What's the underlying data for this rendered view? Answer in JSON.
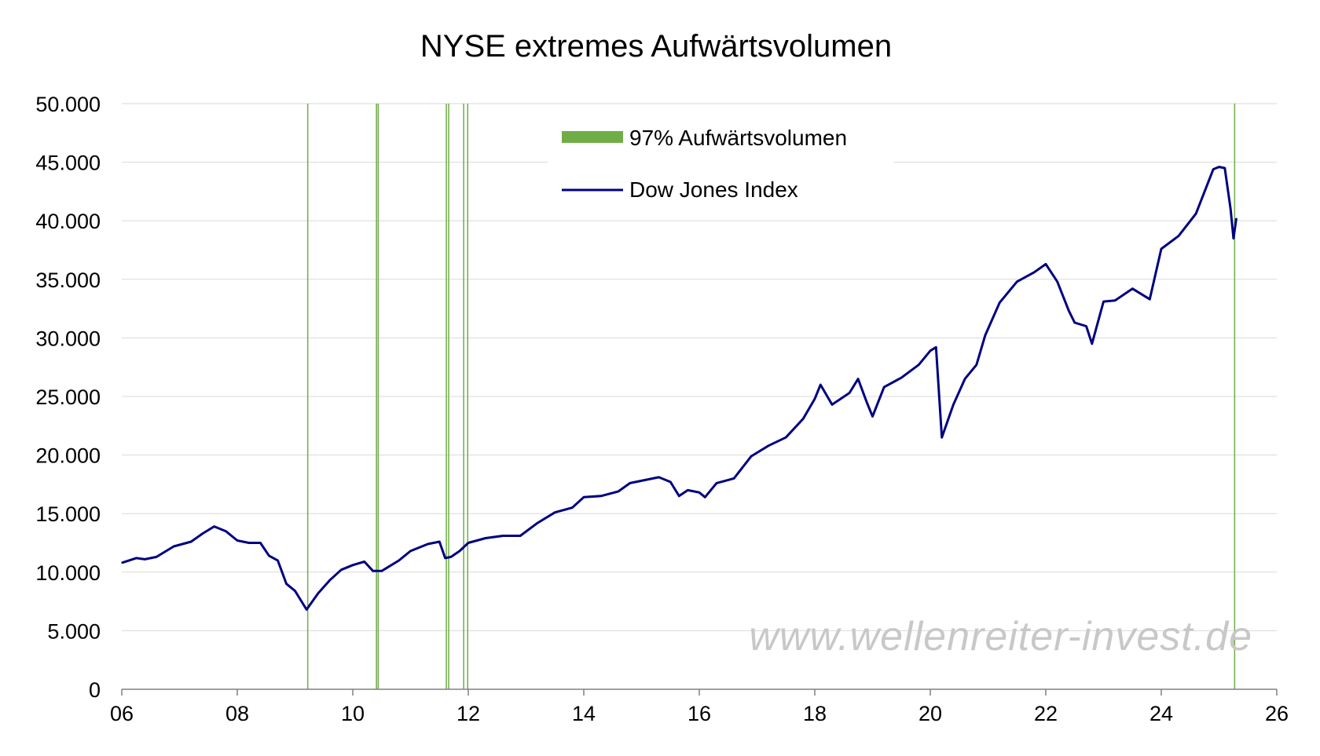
{
  "chart_data": {
    "type": "line",
    "title": "NYSE extremes Aufwärtsvolumen",
    "xlabel": "",
    "ylabel": "",
    "xlim": [
      2006,
      2026
    ],
    "ylim": [
      0,
      50000
    ],
    "x_ticks": [
      2006,
      2008,
      2010,
      2012,
      2014,
      2016,
      2018,
      2020,
      2022,
      2024,
      2026
    ],
    "x_tick_labels": [
      "06",
      "08",
      "10",
      "12",
      "14",
      "16",
      "18",
      "20",
      "22",
      "24",
      "26"
    ],
    "y_ticks": [
      0,
      5000,
      10000,
      15000,
      20000,
      25000,
      30000,
      35000,
      40000,
      45000,
      50000
    ],
    "y_tick_labels": [
      "0",
      "5.000",
      "10.000",
      "15.000",
      "20.000",
      "25.000",
      "30.000",
      "35.000",
      "40.000",
      "45.000",
      "50.000"
    ],
    "grid": "horizontal",
    "legend_placement": "top-center",
    "series": [
      {
        "name": "Dow Jones Index",
        "kind": "line",
        "color": "#000080",
        "x": [
          2006.0,
          2006.25,
          2006.4,
          2006.6,
          2006.9,
          2007.2,
          2007.4,
          2007.6,
          2007.8,
          2008.0,
          2008.2,
          2008.4,
          2008.55,
          2008.7,
          2008.85,
          2009.0,
          2009.2,
          2009.4,
          2009.6,
          2009.8,
          2010.0,
          2010.2,
          2010.35,
          2010.5,
          2010.8,
          2011.0,
          2011.3,
          2011.5,
          2011.6,
          2011.7,
          2011.85,
          2012.0,
          2012.3,
          2012.6,
          2012.9,
          2013.2,
          2013.5,
          2013.8,
          2014.0,
          2014.3,
          2014.6,
          2014.8,
          2015.0,
          2015.3,
          2015.5,
          2015.65,
          2015.8,
          2016.0,
          2016.1,
          2016.3,
          2016.6,
          2016.9,
          2017.2,
          2017.5,
          2017.8,
          2018.0,
          2018.1,
          2018.3,
          2018.6,
          2018.75,
          2018.9,
          2019.0,
          2019.2,
          2019.5,
          2019.8,
          2020.0,
          2020.1,
          2020.2,
          2020.4,
          2020.6,
          2020.8,
          2020.95,
          2021.2,
          2021.5,
          2021.8,
          2022.0,
          2022.2,
          2022.4,
          2022.5,
          2022.7,
          2022.8,
          2023.0,
          2023.2,
          2023.5,
          2023.8,
          2024.0,
          2024.3,
          2024.6,
          2024.9,
          2025.0,
          2025.1,
          2025.2,
          2025.25,
          2025.3
        ],
        "values": [
          10800,
          11200,
          11100,
          11300,
          12200,
          12600,
          13300,
          13900,
          13500,
          12700,
          12500,
          12500,
          11400,
          11000,
          9000,
          8400,
          6800,
          8200,
          9300,
          10200,
          10600,
          10900,
          10100,
          10100,
          11000,
          11800,
          12400,
          12600,
          11200,
          11300,
          11800,
          12500,
          12900,
          13100,
          13100,
          14200,
          15100,
          15500,
          16400,
          16500,
          16900,
          17600,
          17800,
          18100,
          17700,
          16500,
          17000,
          16800,
          16400,
          17600,
          18000,
          19900,
          20800,
          21500,
          23100,
          24800,
          26000,
          24300,
          25300,
          26500,
          24500,
          23300,
          25800,
          26600,
          27700,
          28900,
          29200,
          21500,
          24300,
          26500,
          27700,
          30200,
          33000,
          34800,
          35600,
          36300,
          34800,
          32300,
          31300,
          31000,
          29500,
          33100,
          33200,
          34200,
          33300,
          37600,
          38700,
          40600,
          44400,
          44600,
          44500,
          41000,
          38500,
          40200
        ]
      },
      {
        "name": "97% Aufwärtsvolumen",
        "kind": "event-lines",
        "color": "#70AD47",
        "events": [
          2009.22,
          2010.41,
          2010.44,
          2011.62,
          2011.66,
          2011.92,
          2011.99,
          2025.27
        ]
      }
    ]
  },
  "watermark": "www.wellenreiter-invest.de",
  "colors": {
    "background": "#FFFFFF",
    "gridline": "#D9D9D9",
    "axis": "#808080",
    "dow": "#000080",
    "event": "#70AD47"
  }
}
